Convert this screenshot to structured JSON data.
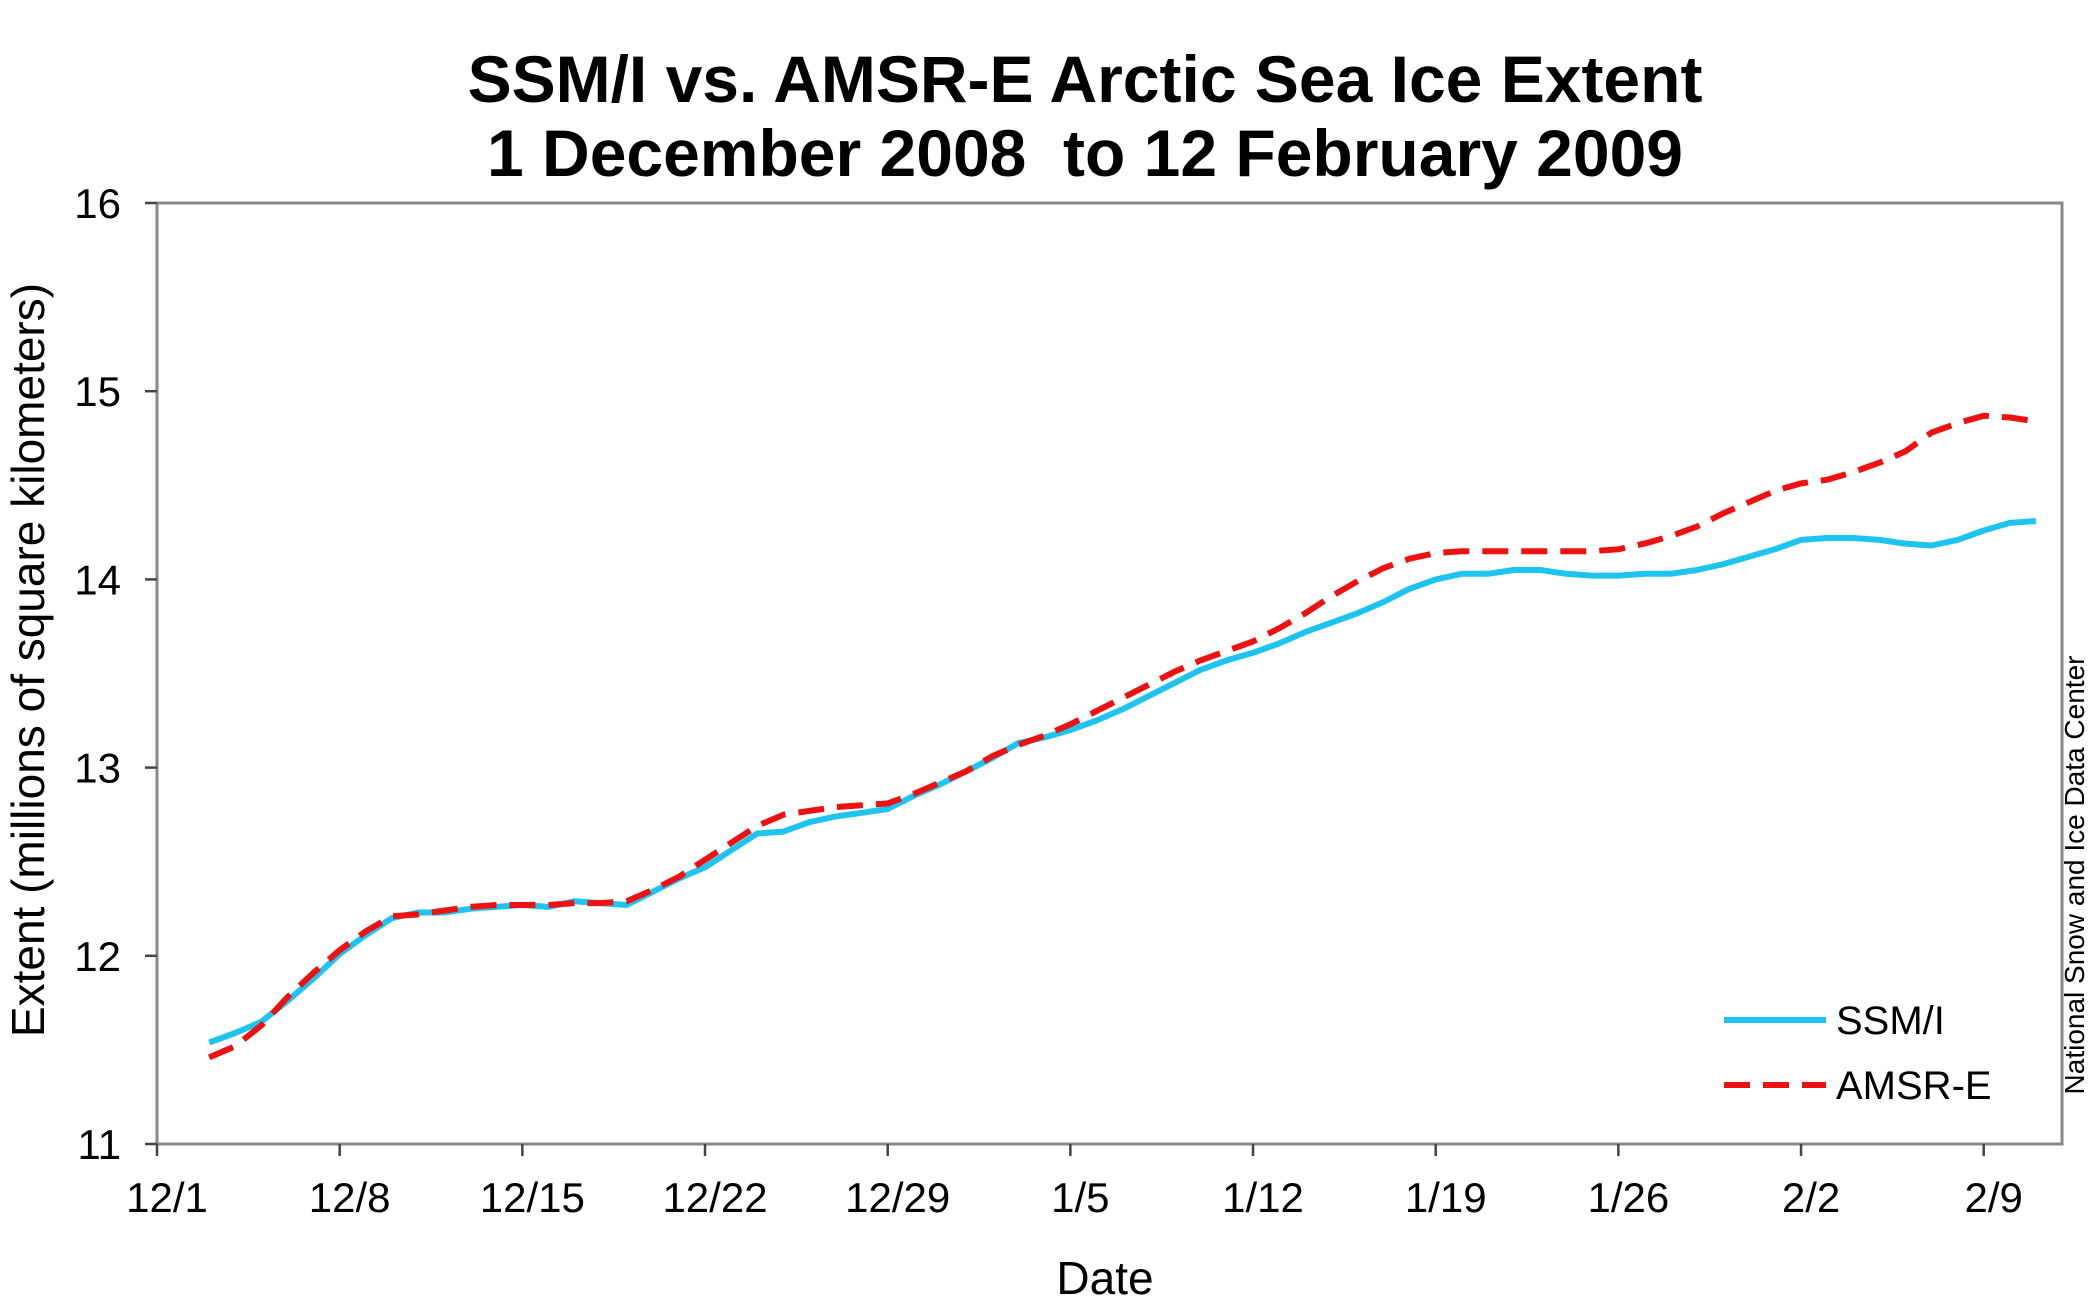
{
  "chart_data": {
    "type": "line",
    "title": "SSM/I vs. AMSR-E Arctic Sea Ice Extent",
    "subtitle": "1 December 2008  to 12 February 2009",
    "xlabel": "Date",
    "ylabel": "Extent (millions of square kilometers)",
    "credit": "National Snow and Ice Data Center",
    "ylim": [
      11,
      16
    ],
    "xlim": [
      "2008-12-01",
      "2009-02-12"
    ],
    "yticks": [
      "11",
      "12",
      "13",
      "14",
      "15",
      "16"
    ],
    "xticks": [
      "12/1",
      "12/8",
      "12/15",
      "12/22",
      "12/29",
      "1/5",
      "1/12",
      "1/19",
      "1/26",
      "2/2",
      "2/9"
    ],
    "x": [
      "2008-12-03",
      "2008-12-04",
      "2008-12-05",
      "2008-12-06",
      "2008-12-07",
      "2008-12-08",
      "2008-12-09",
      "2008-12-10",
      "2008-12-11",
      "2008-12-12",
      "2008-12-13",
      "2008-12-14",
      "2008-12-15",
      "2008-12-16",
      "2008-12-17",
      "2008-12-18",
      "2008-12-19",
      "2008-12-20",
      "2008-12-21",
      "2008-12-22",
      "2008-12-23",
      "2008-12-24",
      "2008-12-25",
      "2008-12-26",
      "2008-12-27",
      "2008-12-28",
      "2008-12-29",
      "2008-12-30",
      "2008-12-31",
      "2009-01-01",
      "2009-01-02",
      "2009-01-03",
      "2009-01-04",
      "2009-01-05",
      "2009-01-06",
      "2009-01-07",
      "2009-01-08",
      "2009-01-09",
      "2009-01-10",
      "2009-01-11",
      "2009-01-12",
      "2009-01-13",
      "2009-01-14",
      "2009-01-15",
      "2009-01-16",
      "2009-01-17",
      "2009-01-18",
      "2009-01-19",
      "2009-01-20",
      "2009-01-21",
      "2009-01-22",
      "2009-01-23",
      "2009-01-24",
      "2009-01-25",
      "2009-01-26",
      "2009-01-27",
      "2009-01-28",
      "2009-01-29",
      "2009-01-30",
      "2009-01-31",
      "2009-02-01",
      "2009-02-02",
      "2009-02-03",
      "2009-02-04",
      "2009-02-05",
      "2009-02-06",
      "2009-02-07",
      "2009-02-08",
      "2009-02-09",
      "2009-02-10",
      "2009-02-11"
    ],
    "series": [
      {
        "name": "SSM/I",
        "color": "#1EC3F0",
        "style": "solid",
        "values": [
          11.54,
          11.59,
          11.65,
          11.76,
          11.88,
          12.01,
          12.11,
          12.2,
          12.23,
          12.23,
          12.25,
          12.26,
          12.27,
          12.26,
          12.29,
          12.28,
          12.27,
          12.34,
          12.41,
          12.47,
          12.56,
          12.65,
          12.66,
          12.71,
          12.74,
          12.76,
          12.78,
          12.85,
          12.91,
          12.98,
          13.05,
          13.13,
          13.16,
          13.2,
          13.25,
          13.31,
          13.38,
          13.45,
          13.52,
          13.57,
          13.61,
          13.66,
          13.72,
          13.77,
          13.82,
          13.88,
          13.95,
          14.0,
          14.03,
          14.03,
          14.05,
          14.05,
          14.03,
          14.02,
          14.02,
          14.03,
          14.03,
          14.05,
          14.08,
          14.12,
          14.16,
          14.21,
          14.22,
          14.22,
          14.21,
          14.19,
          14.18,
          14.21,
          14.26,
          14.3,
          14.31
        ]
      },
      {
        "name": "AMSR-E",
        "color": "#EE1111",
        "style": "dashed",
        "values": [
          11.46,
          11.52,
          11.63,
          11.78,
          11.91,
          12.03,
          12.13,
          12.21,
          12.22,
          12.24,
          12.26,
          12.27,
          12.27,
          12.27,
          12.28,
          12.28,
          12.29,
          12.35,
          12.42,
          12.51,
          12.6,
          12.69,
          12.75,
          12.77,
          12.79,
          12.8,
          12.81,
          12.86,
          12.92,
          12.98,
          13.06,
          13.12,
          13.17,
          13.23,
          13.3,
          13.37,
          13.44,
          13.51,
          13.57,
          13.62,
          13.67,
          13.74,
          13.82,
          13.91,
          13.99,
          14.06,
          14.11,
          14.14,
          14.15,
          14.15,
          14.15,
          14.15,
          14.15,
          14.15,
          14.16,
          14.19,
          14.23,
          14.28,
          14.35,
          14.41,
          14.47,
          14.51,
          14.53,
          14.57,
          14.62,
          14.68,
          14.78,
          14.83,
          14.87,
          14.86,
          14.84
        ]
      }
    ],
    "legend_position": "bottom-right",
    "grid": false
  }
}
